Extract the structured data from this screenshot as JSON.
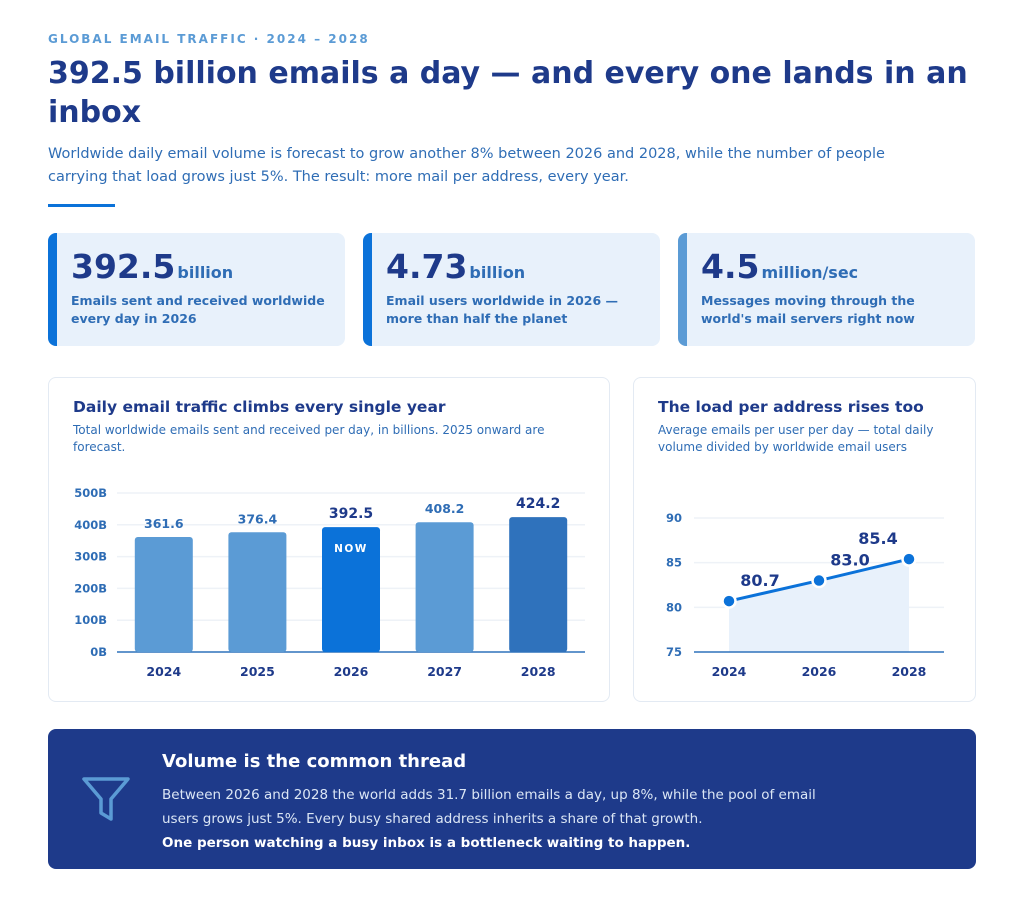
{
  "header": {
    "eyebrow": "GLOBAL EMAIL TRAFFIC · 2024 – 2028",
    "headline": "392.5 billion emails a day — and every one lands in an inbox",
    "lede": "Worldwide daily email volume is forecast to grow another 8% between 2026 and 2028, while the number of people carrying that load grows just 5%. The result: more mail per address, every year."
  },
  "stats": [
    {
      "value": "392.5",
      "unit": "billion",
      "description": "Emails sent and received worldwide every day in 2026",
      "accent": "#0b72d9"
    },
    {
      "value": "4.73",
      "unit": "billion",
      "description": "Email users worldwide in 2026 — more than half the planet",
      "accent": "#0b72d9"
    },
    {
      "value": "4.5",
      "unit": "million/sec",
      "description": "Messages moving through the world's mail servers right now",
      "accent": "#5b9bd5"
    }
  ],
  "traffic_card": {
    "title": "Daily email traffic climbs every single year",
    "subtitle": "Total worldwide emails sent and received per day, in billions. 2025 onward are forecast."
  },
  "load_card": {
    "title": "The load per address rises too",
    "subtitle": "Average emails per user per day — total daily volume divided by worldwide email users"
  },
  "chart_data": [
    {
      "type": "bar",
      "title": "Daily email traffic climbs every single year",
      "categories": [
        "2024",
        "2025",
        "2026",
        "2027",
        "2028"
      ],
      "values": [
        361.6,
        376.4,
        392.5,
        408.2,
        424.2
      ],
      "value_labels": [
        "361.6",
        "376.4",
        "392.5",
        "408.2",
        "424.2"
      ],
      "y_ticks": [
        "0B",
        "100B",
        "200B",
        "300B",
        "400B",
        "500B"
      ],
      "ylim": [
        0,
        500
      ],
      "highlight_index": 2,
      "highlight_label": "NOW",
      "bar_colors": [
        "#5b9bd5",
        "#5b9bd5",
        "#0b72d9",
        "#5b9bd5",
        "#2f72bc"
      ],
      "grid": true
    },
    {
      "type": "line",
      "title": "The load per address rises too",
      "x": [
        "2024",
        "2026",
        "2028"
      ],
      "values": [
        80.7,
        83.0,
        85.4
      ],
      "value_labels": [
        "80.7",
        "83.0",
        "85.4"
      ],
      "y_ticks": [
        "75",
        "80",
        "85",
        "90"
      ],
      "ylim": [
        75,
        90
      ],
      "line_color": "#0b72d9",
      "fill_color": "#e8f1fb",
      "grid": true
    }
  ],
  "callout": {
    "icon": "funnel-icon",
    "title": "Volume is the common thread",
    "body": "Between 2026 and 2028 the world adds 31.7 billion emails a day, up 8%, while the pool of email users grows just 5%. Every busy shared address inherits a share of that growth.",
    "bold": "One person watching a busy inbox is a bottleneck waiting to happen."
  }
}
